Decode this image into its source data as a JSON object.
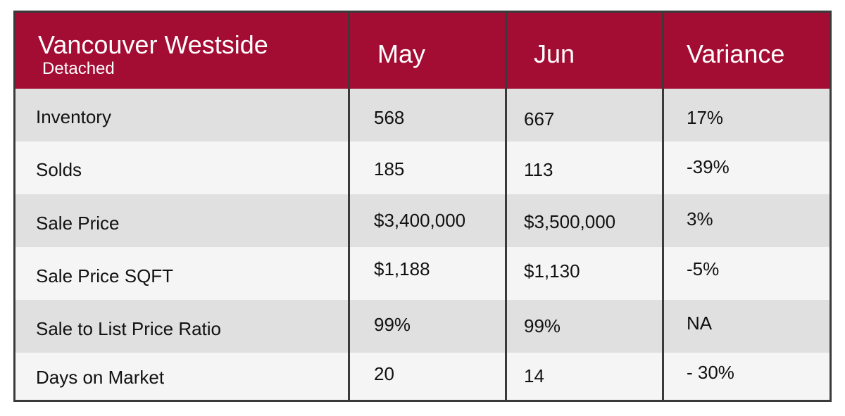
{
  "table": {
    "header_color": "#a30c33",
    "title": "Vancouver Westside",
    "subtitle": "Detached",
    "columns": [
      "May",
      "Jun",
      "Variance"
    ],
    "rows": [
      {
        "label": "Inventory",
        "may": "568",
        "jun": "667",
        "variance": "17%"
      },
      {
        "label": "Solds",
        "may": "185",
        "jun": "113",
        "variance": "-39%"
      },
      {
        "label": "Sale Price",
        "may": "$3,400,000",
        "jun": "$3,500,000",
        "variance": "3%"
      },
      {
        "label": "Sale Price SQFT",
        "may": "$1,188",
        "jun": "$1,130",
        "variance": "-5%"
      },
      {
        "label": "Sale to List Price Ratio",
        "may": "99%",
        "jun": "99%",
        "variance": "NA"
      },
      {
        "label": "Days on Market",
        "may": "20",
        "jun": "14",
        "variance": "- 30%"
      }
    ]
  },
  "chart_data": {
    "type": "table",
    "title": "Vancouver Westside",
    "subtitle": "Detached",
    "columns": [
      "May",
      "Jun",
      "Variance"
    ],
    "rows": [
      [
        "Inventory",
        "568",
        "667",
        "17%"
      ],
      [
        "Solds",
        "185",
        "113",
        "-39%"
      ],
      [
        "Sale Price",
        "$3,400,000",
        "$3,500,000",
        "3%"
      ],
      [
        "Sale Price SQFT",
        "$1,188",
        "$1,130",
        "-5%"
      ],
      [
        "Sale to List Price Ratio",
        "99%",
        "99%",
        "NA"
      ],
      [
        "Days on Market",
        "20",
        "14",
        "- 30%"
      ]
    ]
  }
}
